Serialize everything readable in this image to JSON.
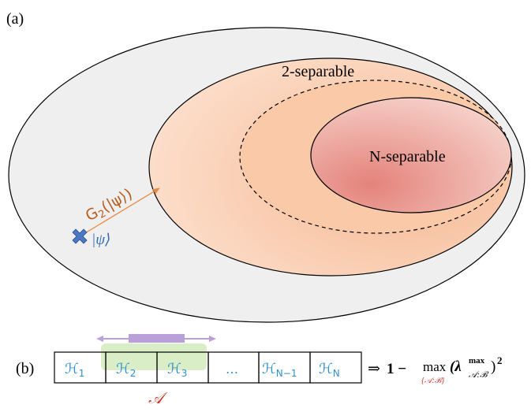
{
  "panel_a": {
    "label": "(a)",
    "two_separable_label": "2-separable",
    "n_separable_label": "N-separable",
    "g2_label": "G",
    "g2_sub": "2",
    "g2_arg": "(|ψ⟩)",
    "psi_label": "|ψ⟩",
    "marker_icon": "x-cross-icon",
    "colors": {
      "outer_fill": "#efefef",
      "two_sep_fill": "#fbcfb0",
      "n_sep_fill": "#e99a8f",
      "arrow": "#e88a45",
      "g2_text": "#b85c1c",
      "psi_text": "#2e6db0",
      "marker": "#4a78c4"
    }
  },
  "panel_b": {
    "label": "(b)",
    "cells": [
      {
        "sym": "ℋ",
        "sub": "1"
      },
      {
        "sym": "ℋ",
        "sub": "2"
      },
      {
        "sym": "ℋ",
        "sub": "3"
      },
      {
        "sym": "…",
        "sub": ""
      },
      {
        "sym": "ℋ",
        "sub": "N−1"
      },
      {
        "sym": "ℋ",
        "sub": "N"
      }
    ],
    "subset_label": "𝒜",
    "formula": {
      "implies": "⇒",
      "one_minus": "1 −",
      "max": "max",
      "max_sub": "{𝒜:ℬ}",
      "lambda": "(λ",
      "lambda_sup": "max",
      "lambda_sub": "𝒜:ℬ",
      "close": ")",
      "power": "2"
    },
    "colors": {
      "cell_text": "#2f8fd0",
      "subset_fill": "#d9eec6",
      "subset_label": "#c0392b",
      "bar": "#b9a0d8",
      "max_sub": "#c0392b"
    }
  }
}
